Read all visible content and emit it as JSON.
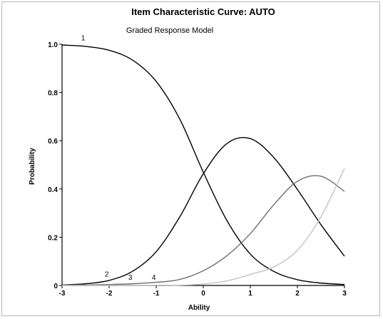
{
  "chart_data": {
    "type": "line",
    "title": "Item Characteristic Curve: AUTO",
    "subtitle": "Graded Response Model",
    "xlabel": "Ability",
    "ylabel": "Probability",
    "xlim": [
      -3,
      3
    ],
    "ylim": [
      0,
      1
    ],
    "x_ticks": [
      "-3",
      "-2",
      "-1",
      "0",
      "1",
      "2",
      "3"
    ],
    "y_ticks": [
      "0",
      "0.2",
      "0.4",
      "0.6",
      "0.8",
      "1.0"
    ],
    "grid": false,
    "x": [
      -3,
      -2.5,
      -2,
      -1.5,
      -1,
      -0.5,
      0,
      0.5,
      1,
      1.5,
      2,
      2.5,
      3
    ],
    "series": [
      {
        "name": "1",
        "color": "#000000",
        "values": [
          0.997,
          0.991,
          0.975,
          0.934,
          0.846,
          0.69,
          0.47,
          0.27,
          0.13,
          0.058,
          0.024,
          0.01,
          0.004
        ]
      },
      {
        "name": "2",
        "color": "#000000",
        "values": [
          0.002,
          0.007,
          0.021,
          0.059,
          0.14,
          0.284,
          0.463,
          0.588,
          0.609,
          0.53,
          0.398,
          0.252,
          0.121
        ]
      },
      {
        "name": "3",
        "color": "#6e6e6e",
        "values": [
          0.001,
          0.002,
          0.004,
          0.007,
          0.013,
          0.025,
          0.061,
          0.123,
          0.215,
          0.335,
          0.432,
          0.453,
          0.39
        ]
      },
      {
        "name": "4",
        "color": "#c4c4c4",
        "values": [
          0,
          0,
          0,
          0,
          0.001,
          0.001,
          0.006,
          0.019,
          0.046,
          0.077,
          0.146,
          0.285,
          0.485
        ]
      }
    ]
  }
}
